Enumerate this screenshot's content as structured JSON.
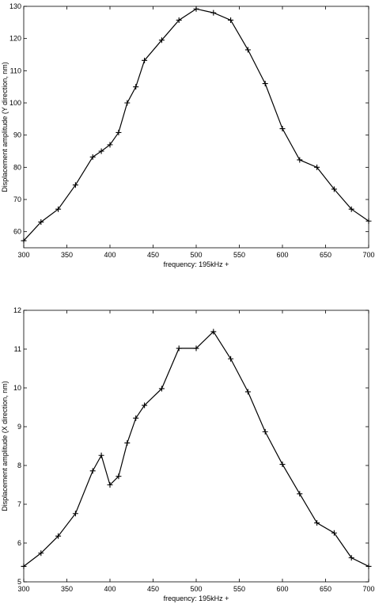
{
  "chart_data": [
    {
      "type": "line",
      "xlabel": "frequency: 195kHz +",
      "ylabel": "Displacement amplitude (Y direction, nm)",
      "xlim": [
        300,
        700
      ],
      "ylim": [
        55,
        130
      ],
      "xticks": [
        300,
        350,
        400,
        450,
        500,
        550,
        600,
        650,
        700
      ],
      "yticks": [
        60,
        70,
        80,
        90,
        100,
        110,
        120,
        130
      ],
      "grid": false,
      "marker": "+",
      "series": [
        {
          "x": [
            300,
            320,
            340,
            360,
            380,
            390,
            400,
            410,
            420,
            430,
            440,
            460,
            480,
            500,
            520,
            540,
            560,
            580,
            600,
            620,
            640,
            660,
            680,
            700
          ],
          "y": [
            57.2,
            63,
            67,
            74.5,
            83.2,
            85,
            87,
            90.8,
            100,
            105,
            113.2,
            119.5,
            125.7,
            129.2,
            128,
            125.7,
            116.5,
            106,
            92,
            82.3,
            80,
            73.2,
            67,
            63.3
          ]
        }
      ]
    },
    {
      "type": "line",
      "xlabel": "frequency: 195kHz +",
      "ylabel": "Displacement amplitude (X direction, nm)",
      "xlim": [
        300,
        700
      ],
      "ylim": [
        5,
        12
      ],
      "xticks": [
        300,
        350,
        400,
        450,
        500,
        550,
        600,
        650,
        700
      ],
      "yticks": [
        5,
        6,
        7,
        8,
        9,
        10,
        11,
        12
      ],
      "grid": false,
      "marker": "+",
      "series": [
        {
          "x": [
            300,
            320,
            340,
            360,
            380,
            390,
            400,
            410,
            420,
            430,
            440,
            460,
            480,
            500,
            520,
            540,
            560,
            580,
            600,
            620,
            640,
            660,
            680,
            700
          ],
          "y": [
            5.4,
            5.74,
            6.18,
            6.76,
            7.86,
            8.26,
            7.5,
            7.72,
            8.58,
            9.22,
            9.55,
            9.98,
            11.02,
            11.02,
            11.45,
            10.75,
            9.9,
            8.87,
            8.03,
            7.27,
            6.52,
            6.26,
            5.62,
            5.4
          ]
        }
      ]
    }
  ]
}
